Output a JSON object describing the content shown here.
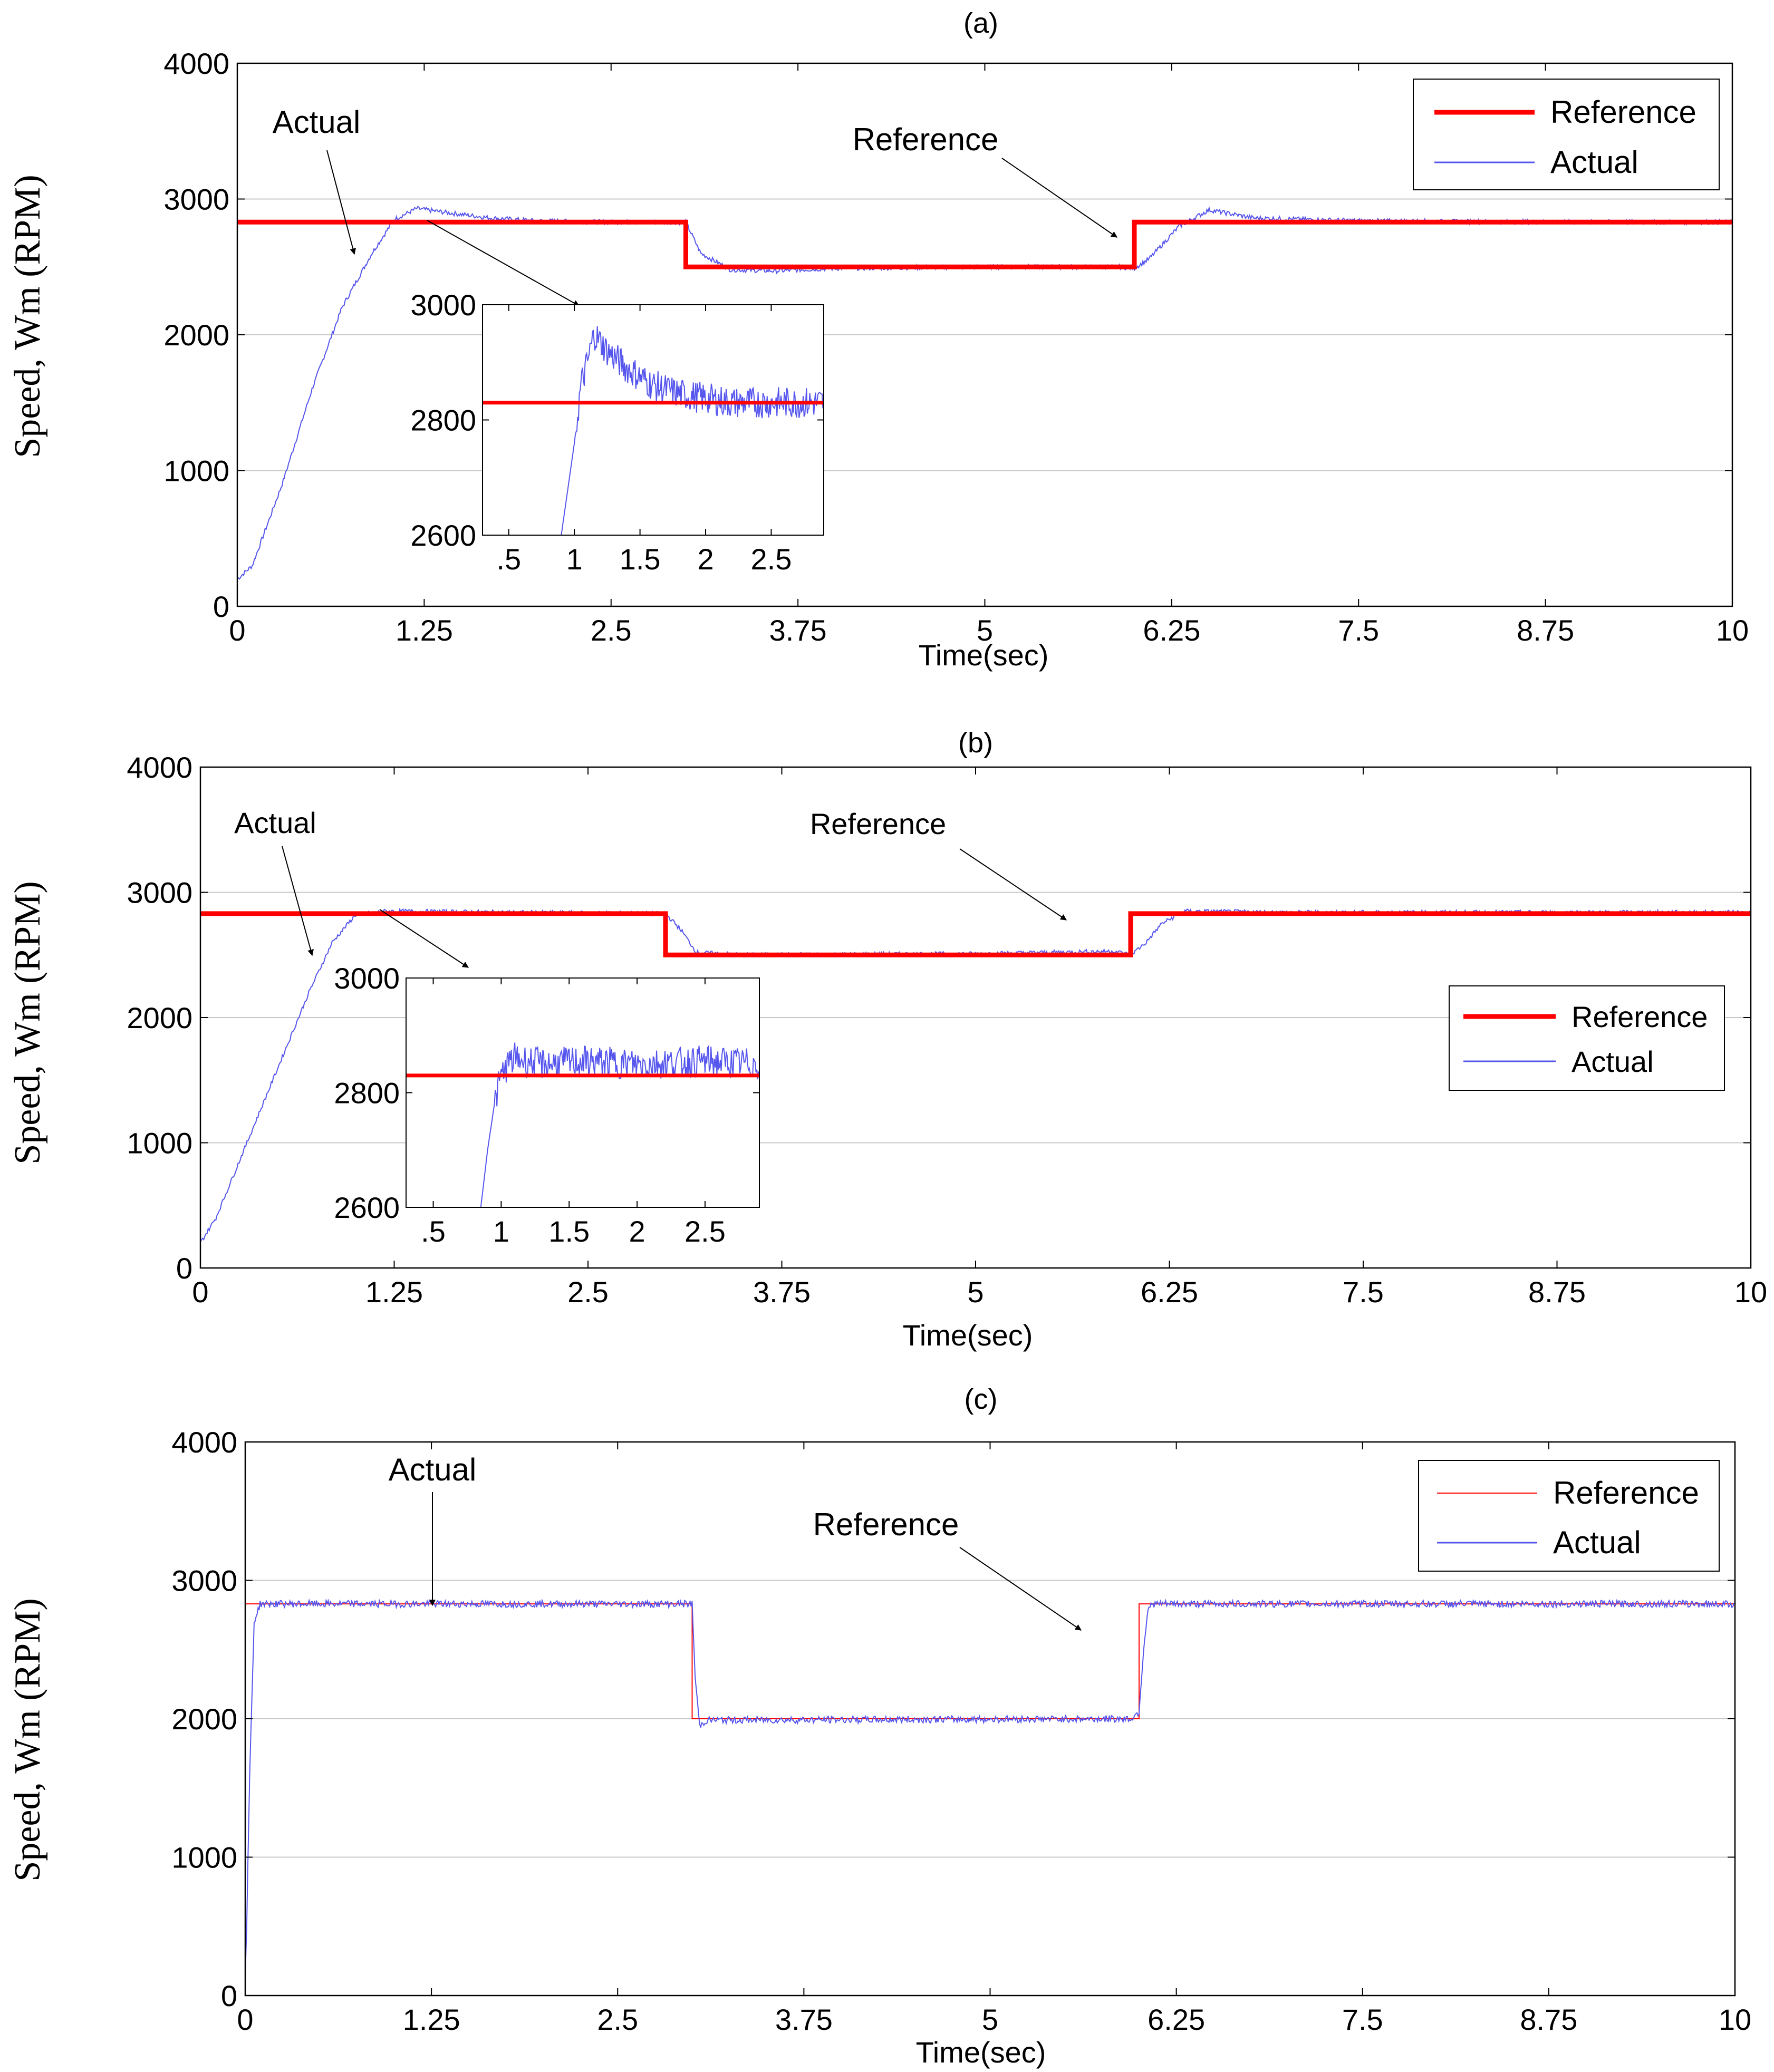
{
  "colors": {
    "reference": "#ff0000",
    "actual": "#5555ee",
    "grid": "#c8c8c8",
    "axis": "#000000"
  },
  "chart_data": [
    {
      "type": "line",
      "title": "(a)",
      "xlabel": "Time(sec)",
      "ylabel": "Speed, Wm (RPM)",
      "xlim": [
        0,
        10
      ],
      "ylim": [
        0,
        4000
      ],
      "xticks": [
        "0",
        "1.25",
        "2.5",
        "3.75",
        "5",
        "6.25",
        "7.5",
        "8.75",
        "10"
      ],
      "yticks": [
        "0",
        "1000",
        "2000",
        "3000",
        "4000"
      ],
      "grid": true,
      "legend": {
        "position": "top-right",
        "entries": [
          "Reference",
          "Actual"
        ]
      },
      "series": [
        {
          "name": "Reference",
          "x": [
            0,
            3,
            3,
            6,
            6,
            10
          ],
          "y": [
            2830,
            2830,
            2500,
            2500,
            2830,
            2830
          ]
        },
        {
          "name": "Actual",
          "x": [
            0,
            0.1,
            0.3,
            0.5,
            0.7,
            0.9,
            1.05,
            1.2,
            1.4,
            1.7,
            2.0,
            2.5,
            3.0,
            3.1,
            3.3,
            3.6,
            4.0,
            5.0,
            5.9,
            6.0,
            6.1,
            6.3,
            6.5,
            6.8,
            7.5,
            8.75,
            10
          ],
          "y": [
            200,
            300,
            900,
            1600,
            2200,
            2600,
            2850,
            2930,
            2900,
            2860,
            2840,
            2830,
            2830,
            2600,
            2480,
            2470,
            2490,
            2500,
            2500,
            2490,
            2560,
            2800,
            2920,
            2860,
            2840,
            2830,
            2830
          ]
        }
      ],
      "annotations": [
        {
          "text": "Actual"
        },
        {
          "text": "Reference"
        }
      ],
      "inset": {
        "xticks": [
          ".5",
          "1",
          "1.5",
          "2",
          "2.5"
        ],
        "yticks": [
          "2600",
          "2800",
          "3000"
        ],
        "xlim": [
          0.3,
          2.9
        ],
        "ylim": [
          2600,
          3000
        ],
        "reference": 2830,
        "actual": {
          "x": [
            0.9,
            0.95,
            1.0,
            1.05,
            1.1,
            1.15,
            1.25,
            1.4,
            1.6,
            1.8,
            2.2,
            2.9
          ],
          "y": [
            2600,
            2680,
            2760,
            2860,
            2900,
            2950,
            2920,
            2890,
            2860,
            2845,
            2830,
            2830
          ]
        }
      }
    },
    {
      "type": "line",
      "title": "(b)",
      "xlabel": "Time(sec)",
      "ylabel": "Speed, Wm (RPM)",
      "xlim": [
        0,
        10
      ],
      "ylim": [
        0,
        4000
      ],
      "xticks": [
        "0",
        "1.25",
        "2.5",
        "3.75",
        "5",
        "6.25",
        "7.5",
        "8.75",
        "10"
      ],
      "yticks": [
        "0",
        "1000",
        "2000",
        "3000",
        "4000"
      ],
      "grid": true,
      "legend": {
        "position": "center-right",
        "entries": [
          "Reference",
          "Actual"
        ]
      },
      "series": [
        {
          "name": "Reference",
          "x": [
            0,
            3,
            3,
            6,
            6,
            10
          ],
          "y": [
            2830,
            2830,
            2500,
            2500,
            2830,
            2830
          ]
        },
        {
          "name": "Actual",
          "x": [
            0,
            0.1,
            0.3,
            0.5,
            0.7,
            0.85,
            1.0,
            1.2,
            2.0,
            3.0,
            3.1,
            3.2,
            3.5,
            5.0,
            5.9,
            6.0,
            6.1,
            6.2,
            6.35,
            7.0,
            10
          ],
          "y": [
            200,
            400,
            1000,
            1600,
            2200,
            2600,
            2820,
            2850,
            2840,
            2830,
            2700,
            2520,
            2500,
            2510,
            2530,
            2500,
            2600,
            2750,
            2850,
            2840,
            2840
          ]
        }
      ],
      "annotations": [
        {
          "text": "Actual"
        },
        {
          "text": "Reference"
        }
      ],
      "inset": {
        "xticks": [
          ".5",
          "1",
          "1.5",
          "2",
          "2.5"
        ],
        "yticks": [
          "2600",
          "2800",
          "3000"
        ],
        "xlim": [
          0.3,
          2.9
        ],
        "ylim": [
          2600,
          3000
        ],
        "reference": 2830,
        "actual": {
          "x": [
            0.85,
            0.9,
            0.95,
            1.0,
            1.05,
            1.1,
            1.3,
            1.6,
            2.0,
            2.5,
            2.9
          ],
          "y": [
            2600,
            2700,
            2780,
            2830,
            2850,
            2860,
            2850,
            2855,
            2850,
            2855,
            2850
          ]
        }
      }
    },
    {
      "type": "line",
      "title": "(c)",
      "xlabel": "Time(sec)",
      "ylabel": "Speed, Wm (RPM)",
      "xlim": [
        0,
        10
      ],
      "ylim": [
        0,
        4000
      ],
      "xticks": [
        "0",
        "1.25",
        "2.5",
        "3.75",
        "5",
        "6.25",
        "7.5",
        "8.75",
        "10"
      ],
      "yticks": [
        "0",
        "1000",
        "2000",
        "3000",
        "4000"
      ],
      "grid": true,
      "legend": {
        "position": "top-right",
        "entries": [
          "Reference",
          "Actual"
        ]
      },
      "series": [
        {
          "name": "Reference",
          "x": [
            0,
            3,
            3,
            6,
            6,
            10
          ],
          "y": [
            2830,
            2830,
            2000,
            2000,
            2830,
            2830
          ]
        },
        {
          "name": "Actual",
          "x": [
            0,
            0.01,
            0.03,
            0.06,
            0.1,
            0.2,
            3.0,
            3.02,
            3.05,
            3.1,
            5.95,
            6.0,
            6.03,
            6.06,
            6.1,
            10
          ],
          "y": [
            100,
            500,
            1600,
            2700,
            2830,
            2830,
            2830,
            2300,
            1950,
            1990,
            2000,
            2050,
            2500,
            2800,
            2830,
            2830
          ]
        }
      ],
      "annotations": [
        {
          "text": "Actual"
        },
        {
          "text": "Reference"
        }
      ]
    }
  ]
}
